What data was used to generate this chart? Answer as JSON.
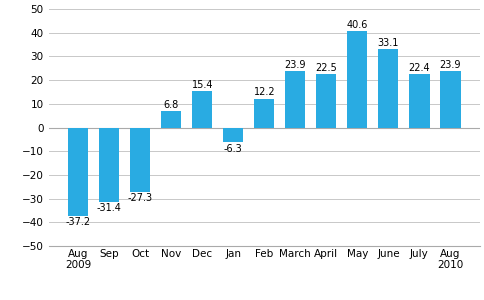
{
  "categories": [
    "Aug\n2009",
    "Sep",
    "Oct",
    "Nov",
    "Dec",
    "Jan",
    "Feb",
    "March",
    "April",
    "May",
    "June",
    "July",
    "Aug\n2010"
  ],
  "values": [
    -37.2,
    -31.4,
    -27.3,
    6.8,
    15.4,
    -6.3,
    12.2,
    23.9,
    22.5,
    40.6,
    33.1,
    22.4,
    23.9
  ],
  "bar_color": "#29abe2",
  "ylim": [
    -50,
    50
  ],
  "yticks": [
    -50,
    -40,
    -30,
    -20,
    -10,
    0,
    10,
    20,
    30,
    40,
    50
  ],
  "background_color": "#ffffff",
  "grid_color": "#c8c8c8",
  "tick_fontsize": 7.5,
  "value_fontsize": 7.0
}
